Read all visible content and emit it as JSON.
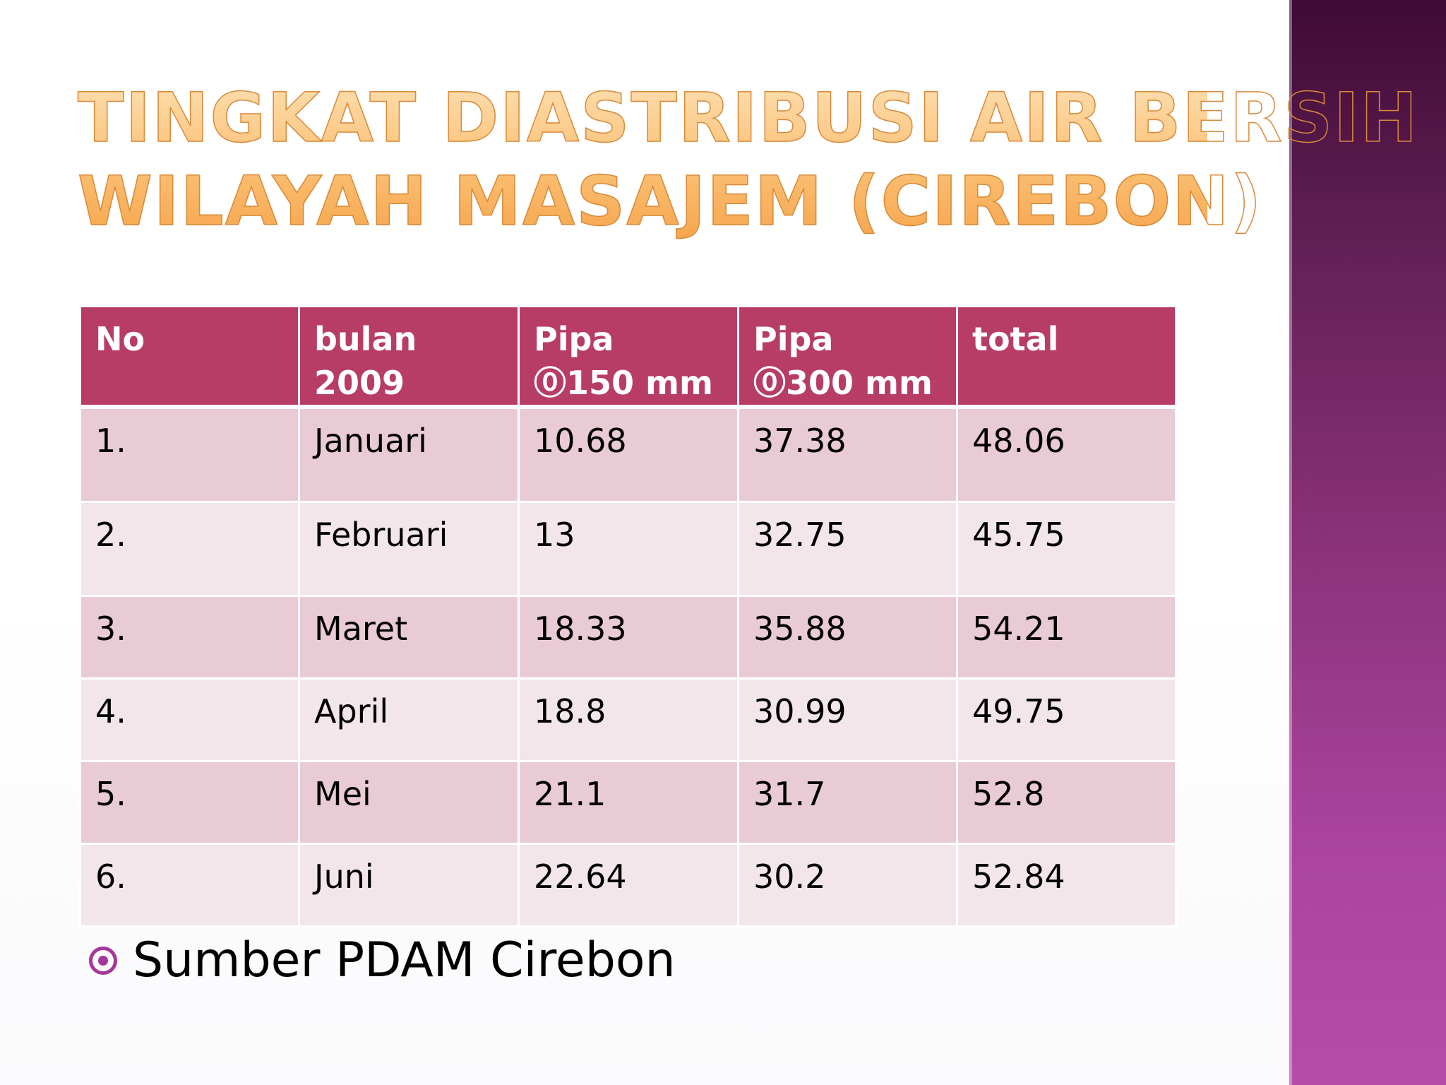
{
  "slide": {
    "title_lines": [
      "TINGKAT DIASTRIBUSI AIR BERSIH",
      "WILAYAH MASAJEM (CIREBON)"
    ],
    "accent_color": "#b73c66",
    "title_color": "#fbbf73"
  },
  "table": {
    "headers": [
      "No",
      "bulan 2009",
      "Pipa ⓪150 mm",
      "Pipa ⓪300 mm",
      "total"
    ],
    "rows": [
      [
        "1.",
        "Januari",
        "10.68",
        "37.38",
        "48.06"
      ],
      [
        "2.",
        "Februari",
        "13",
        "32.75",
        "45.75"
      ],
      [
        "3.",
        "Maret",
        "18.33",
        "35.88",
        "54.21"
      ],
      [
        "4.",
        "April",
        "18.8",
        "30.99",
        "49.75"
      ],
      [
        "5.",
        "Mei",
        "21.1",
        "31.7",
        "52.8"
      ],
      [
        "6.",
        "Juni",
        "22.64",
        "30.2",
        "52.84"
      ]
    ]
  },
  "source": {
    "text": "Sumber PDAM Cirebon",
    "bullet_icon": "circle-dot-bullet-icon"
  }
}
